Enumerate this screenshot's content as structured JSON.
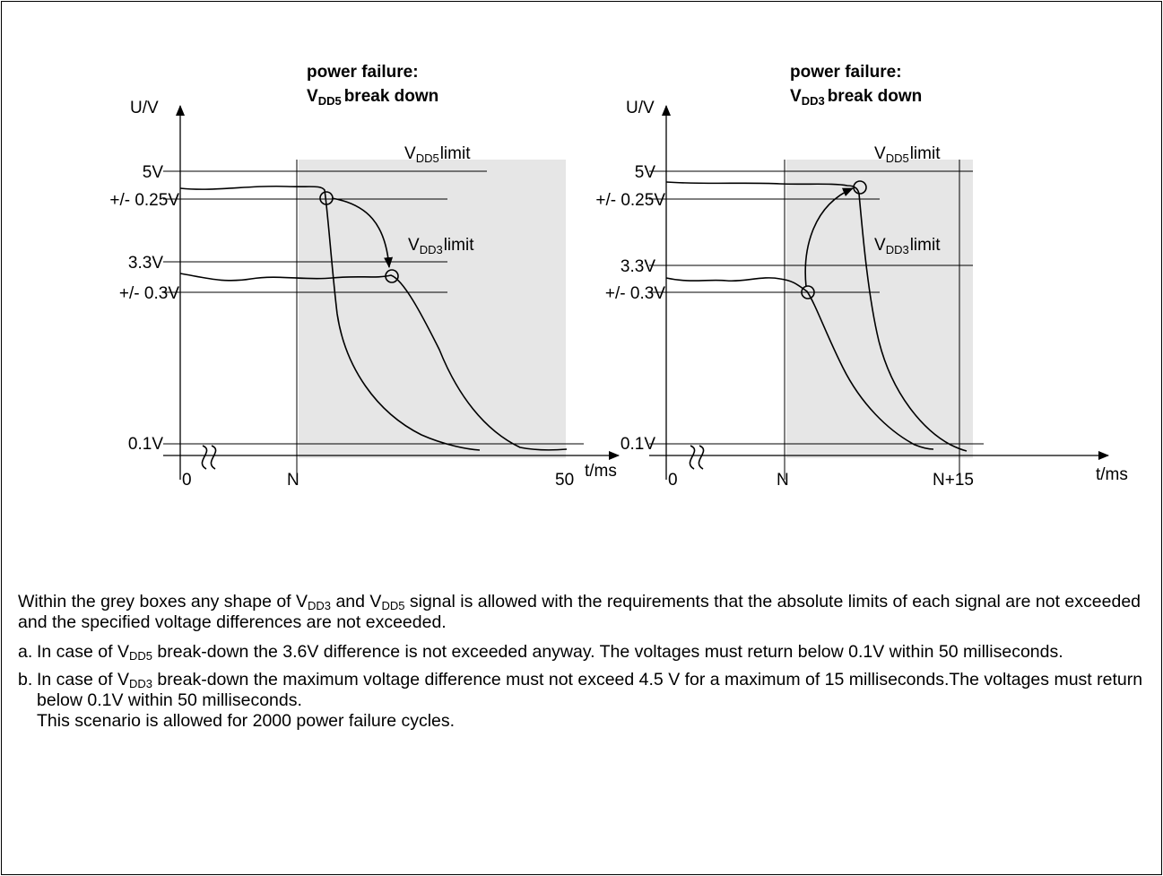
{
  "charts": [
    {
      "title_line1": "power failure:",
      "title_v": "V",
      "title_sub": "DD5",
      "title_rest": "break down",
      "y_axis_label": "U/V",
      "x_axis_label": "t/ms",
      "y_labels": {
        "v5": "5V",
        "tol5": "+/- 0.25V",
        "v33": "3.3V",
        "tol33": "+/- 0.3V",
        "v01": "0.1V"
      },
      "x_labels": {
        "zero": "0",
        "n": "N",
        "end": "50"
      },
      "limit_a": {
        "v": "V",
        "sub": "DD5",
        "rest": "limit"
      },
      "limit_b": {
        "v": "V",
        "sub": "DD3",
        "rest": "limit"
      }
    },
    {
      "title_line1": "power failure:",
      "title_v": "V",
      "title_sub": "DD3",
      "title_rest": "break down",
      "y_axis_label": "U/V",
      "x_axis_label": "t/ms",
      "y_labels": {
        "v5": "5V",
        "tol5": "+/- 0.25V",
        "v33": "3.3V",
        "tol33": "+/- 0.3V",
        "v01": "0.1V"
      },
      "x_labels": {
        "zero": "0",
        "n": "N",
        "end": "N+15"
      },
      "limit_a": {
        "v": "V",
        "sub": "DD5",
        "rest": "limit"
      },
      "limit_b": {
        "v": "V",
        "sub": "DD3",
        "rest": "limit"
      }
    }
  ],
  "caption": {
    "p1_a": "Within the grey boxes any shape of V",
    "p1_sub1": "DD3",
    "p1_b": " and V",
    "p1_sub2": "DD5",
    "p1_c": " signal is allowed with the requirements that the absolute limits of each signal are not exceeded and the specified voltage differences are not exceeded.",
    "a_marker": "a.",
    "a_text1": "In case of V",
    "a_sub": "DD5",
    "a_text2": " break-down the 3.6V difference is not exceeded anyway. The voltages must return below 0.1V within 50 milliseconds.",
    "b_marker": "b.",
    "b_text1": "In case of V",
    "b_sub": "DD3",
    "b_text2": " break-down the maximum voltage difference must not exceed 4.5 V for a maximum of 15 milliseconds.The voltages must return below 0.1V within 50 milliseconds.",
    "b_text3": "This scenario is allowed for 2000 power failure cycles."
  },
  "colors": {
    "grey_box": "#e6e6e6",
    "line": "#000000"
  }
}
